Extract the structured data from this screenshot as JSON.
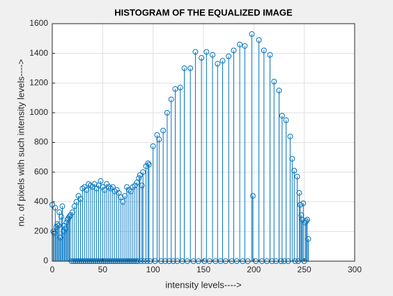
{
  "chart_data": {
    "type": "stem",
    "title": "HISTOGRAM OF THE EQUALIZED IMAGE",
    "x_label": "intensity levels---->",
    "y_label": "no. of pixels with such intensity levels---->",
    "color": "#0072bd",
    "grid": true,
    "xlim": [
      0,
      300
    ],
    "xticks": [
      0,
      50,
      100,
      150,
      200,
      250,
      300
    ],
    "ylim": [
      0,
      1600
    ],
    "yticks": [
      0,
      200,
      400,
      600,
      800,
      1000,
      1200,
      1400,
      1600
    ],
    "x": [
      0,
      1,
      2,
      3,
      4,
      5,
      6,
      7,
      8,
      9,
      10,
      11,
      12,
      13,
      14,
      15,
      16,
      17,
      18,
      19,
      20,
      21,
      22,
      23,
      24,
      25,
      26,
      27,
      28,
      29,
      30,
      31,
      32,
      33,
      34,
      35,
      36,
      37,
      38,
      39,
      40,
      41,
      42,
      43,
      44,
      45,
      46,
      47,
      48,
      49,
      50,
      51,
      52,
      53,
      54,
      55,
      56,
      57,
      58,
      59,
      60,
      61,
      62,
      63,
      64,
      65,
      66,
      67,
      68,
      69,
      70,
      71,
      72,
      73,
      74,
      75,
      76,
      77,
      78,
      79,
      80,
      81,
      82,
      83,
      84,
      85,
      86,
      87,
      88,
      89,
      90,
      91,
      93,
      94,
      95,
      96,
      97,
      100,
      102,
      104,
      106,
      108,
      110,
      112,
      114,
      116,
      118,
      120,
      122,
      124,
      127,
      129,
      131,
      134,
      137,
      140,
      142,
      145,
      148,
      151,
      153,
      156,
      159,
      162,
      164,
      167,
      169,
      172,
      175,
      178,
      180,
      183,
      186,
      189,
      191,
      194,
      198,
      199,
      202,
      205,
      208,
      210,
      213,
      216,
      218,
      220,
      222,
      225,
      227,
      228,
      230,
      232,
      234,
      236,
      238,
      240,
      241,
      243,
      244,
      245,
      246,
      247,
      248,
      249,
      250,
      251,
      252,
      253,
      254
    ],
    "values": [
      380,
      200,
      190,
      360,
      230,
      250,
      240,
      330,
      160,
      300,
      370,
      200,
      240,
      220,
      260,
      280,
      290,
      300,
      310,
      0,
      330,
      0,
      370,
      0,
      400,
      0,
      440,
      0,
      420,
      0,
      490,
      0,
      500,
      0,
      480,
      0,
      520,
      0,
      510,
      0,
      500,
      0,
      520,
      0,
      490,
      0,
      510,
      0,
      540,
      0,
      500,
      0,
      480,
      0,
      520,
      0,
      500,
      0,
      490,
      0,
      500,
      0,
      470,
      0,
      480,
      0,
      460,
      0,
      430,
      0,
      400,
      0,
      440,
      0,
      500,
      0,
      480,
      0,
      470,
      0,
      500,
      0,
      510,
      0,
      530,
      0,
      560,
      580,
      0,
      510,
      600,
      0,
      640,
      0,
      660,
      650,
      0,
      775,
      0,
      850,
      820,
      0,
      880,
      0,
      1000,
      0,
      1090,
      0,
      1160,
      0,
      1170,
      0,
      1300,
      0,
      1300,
      0,
      1410,
      0,
      1370,
      0,
      1410,
      0,
      1390,
      0,
      1330,
      0,
      1350,
      0,
      1380,
      0,
      1420,
      0,
      1460,
      0,
      1450,
      0,
      1530,
      440,
      0,
      1490,
      0,
      1420,
      0,
      1390,
      0,
      1210,
      0,
      1150,
      0,
      980,
      0,
      950,
      0,
      840,
      690,
      610,
      0,
      570,
      0,
      460,
      380,
      310,
      280,
      390,
      0,
      260,
      270,
      280,
      150
    ]
  }
}
